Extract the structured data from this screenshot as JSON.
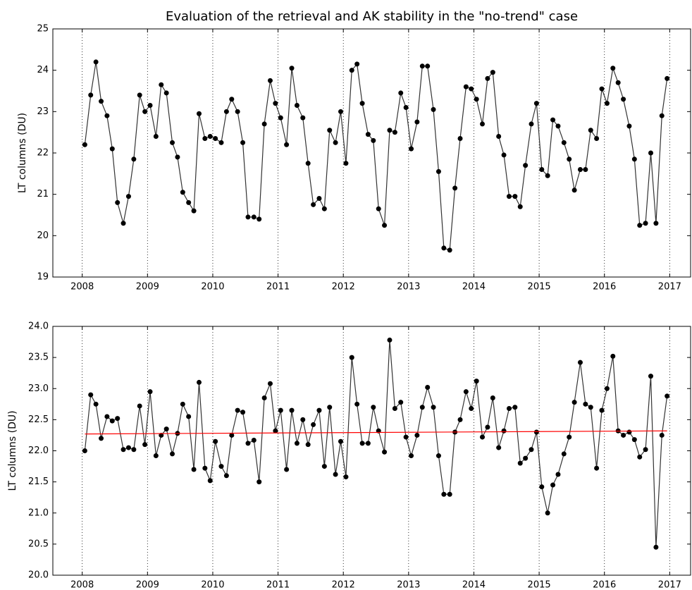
{
  "chart_data": [
    {
      "type": "line",
      "title": "Evaluation of the retrieval and AK stability in the \"no-trend\" case",
      "ylabel": "LT columns (DU)",
      "xlim": [
        2007.55,
        2017.32
      ],
      "xticks": [
        2008,
        2009,
        2010,
        2011,
        2012,
        2013,
        2014,
        2015,
        2016,
        2017
      ],
      "ylim": [
        19,
        25
      ],
      "yticks": [
        19,
        20,
        21,
        22,
        23,
        24,
        25
      ],
      "grid": "x",
      "series": [
        {
          "color": "#000000",
          "line_color": "#333333",
          "marker": true,
          "x": [
            2008.04,
            2008.13,
            2008.21,
            2008.29,
            2008.38,
            2008.46,
            2008.54,
            2008.63,
            2008.71,
            2008.79,
            2008.88,
            2008.96,
            2009.04,
            2009.13,
            2009.21,
            2009.29,
            2009.38,
            2009.46,
            2009.54,
            2009.63,
            2009.71,
            2009.79,
            2009.88,
            2009.96,
            2010.04,
            2010.13,
            2010.21,
            2010.29,
            2010.38,
            2010.46,
            2010.54,
            2010.63,
            2010.71,
            2010.79,
            2010.88,
            2010.96,
            2011.04,
            2011.13,
            2011.21,
            2011.29,
            2011.38,
            2011.46,
            2011.54,
            2011.63,
            2011.71,
            2011.79,
            2011.88,
            2011.96,
            2012.04,
            2012.13,
            2012.21,
            2012.29,
            2012.38,
            2012.46,
            2012.54,
            2012.63,
            2012.71,
            2012.79,
            2012.88,
            2012.96,
            2013.04,
            2013.13,
            2013.21,
            2013.29,
            2013.38,
            2013.46,
            2013.54,
            2013.63,
            2013.71,
            2013.79,
            2013.88,
            2013.96,
            2014.04,
            2014.13,
            2014.21,
            2014.29,
            2014.38,
            2014.46,
            2014.54,
            2014.63,
            2014.71,
            2014.79,
            2014.88,
            2014.96,
            2015.04,
            2015.13,
            2015.21,
            2015.29,
            2015.38,
            2015.46,
            2015.54,
            2015.63,
            2015.71,
            2015.79,
            2015.88,
            2015.96,
            2016.04,
            2016.13,
            2016.21,
            2016.29,
            2016.38,
            2016.46,
            2016.54,
            2016.63,
            2016.71,
            2016.79,
            2016.88,
            2016.96
          ],
          "values": [
            22.2,
            23.4,
            24.2,
            23.25,
            22.9,
            22.1,
            20.8,
            20.3,
            20.95,
            21.85,
            23.4,
            23.0,
            23.15,
            22.4,
            23.65,
            23.45,
            22.25,
            21.9,
            21.05,
            20.8,
            20.6,
            22.95,
            22.35,
            22.4,
            22.35,
            22.25,
            23.0,
            23.3,
            23.0,
            22.25,
            20.45,
            20.45,
            20.4,
            22.7,
            23.75,
            23.2,
            22.85,
            22.2,
            24.05,
            23.15,
            22.85,
            21.75,
            20.75,
            20.9,
            20.65,
            22.55,
            22.25,
            23.0,
            21.75,
            24.0,
            24.15,
            23.2,
            22.45,
            22.3,
            20.65,
            20.25,
            22.55,
            22.5,
            23.45,
            23.1,
            22.1,
            22.75,
            24.1,
            24.1,
            23.05,
            21.55,
            19.7,
            19.65,
            21.15,
            22.35,
            23.6,
            23.55,
            23.3,
            22.7,
            23.8,
            23.95,
            22.4,
            21.95,
            20.95,
            20.95,
            20.7,
            21.7,
            22.7,
            23.2,
            21.6,
            21.45,
            22.8,
            22.65,
            22.25,
            21.85,
            21.1,
            21.6,
            21.6,
            22.55,
            22.35,
            23.55,
            23.2,
            24.05,
            23.7,
            23.3,
            22.65,
            21.85,
            20.25,
            20.3,
            22.0,
            20.3,
            22.9,
            23.8
          ]
        }
      ]
    },
    {
      "type": "line",
      "ylabel": "LT columns (DU)",
      "xlim": [
        2007.55,
        2017.32
      ],
      "xticks": [
        2008,
        2009,
        2010,
        2011,
        2012,
        2013,
        2014,
        2015,
        2016,
        2017
      ],
      "ylim": [
        20,
        24
      ],
      "yticks": [
        {
          "value": 20,
          "label": "20.0"
        },
        20.5,
        {
          "value": 21,
          "label": "21.0"
        },
        21.5,
        {
          "value": 22,
          "label": "22.0"
        },
        22.5,
        {
          "value": 23,
          "label": "23.0"
        },
        23.5,
        {
          "value": 24,
          "label": "24.0"
        }
      ],
      "grid": "x",
      "series": [
        {
          "color": "#000000",
          "line_color": "#333333",
          "marker": true,
          "x": [
            2008.04,
            2008.13,
            2008.21,
            2008.29,
            2008.38,
            2008.46,
            2008.54,
            2008.63,
            2008.71,
            2008.79,
            2008.88,
            2008.96,
            2009.04,
            2009.13,
            2009.21,
            2009.29,
            2009.38,
            2009.46,
            2009.54,
            2009.63,
            2009.71,
            2009.79,
            2009.88,
            2009.96,
            2010.04,
            2010.13,
            2010.21,
            2010.29,
            2010.38,
            2010.46,
            2010.54,
            2010.63,
            2010.71,
            2010.79,
            2010.88,
            2010.96,
            2011.04,
            2011.13,
            2011.21,
            2011.29,
            2011.38,
            2011.46,
            2011.54,
            2011.63,
            2011.71,
            2011.79,
            2011.88,
            2011.96,
            2012.04,
            2012.13,
            2012.21,
            2012.29,
            2012.38,
            2012.46,
            2012.54,
            2012.63,
            2012.71,
            2012.79,
            2012.88,
            2012.96,
            2013.04,
            2013.13,
            2013.21,
            2013.29,
            2013.38,
            2013.46,
            2013.54,
            2013.63,
            2013.71,
            2013.79,
            2013.88,
            2013.96,
            2014.04,
            2014.13,
            2014.21,
            2014.29,
            2014.38,
            2014.46,
            2014.54,
            2014.63,
            2014.71,
            2014.79,
            2014.88,
            2014.96,
            2015.04,
            2015.13,
            2015.21,
            2015.29,
            2015.38,
            2015.46,
            2015.54,
            2015.63,
            2015.71,
            2015.79,
            2015.88,
            2015.96,
            2016.04,
            2016.13,
            2016.21,
            2016.29,
            2016.38,
            2016.46,
            2016.54,
            2016.63,
            2016.71,
            2016.79,
            2016.88,
            2016.96
          ],
          "values": [
            22.0,
            22.9,
            22.75,
            22.2,
            22.55,
            22.48,
            22.52,
            22.02,
            22.05,
            22.02,
            22.72,
            22.1,
            22.95,
            21.92,
            22.25,
            22.35,
            21.95,
            22.28,
            22.75,
            22.55,
            21.7,
            23.1,
            21.72,
            21.52,
            22.15,
            21.75,
            21.6,
            22.25,
            22.65,
            22.62,
            22.12,
            22.17,
            21.5,
            22.85,
            23.08,
            22.32,
            22.65,
            21.7,
            22.65,
            22.12,
            22.5,
            22.1,
            22.42,
            22.65,
            21.75,
            22.7,
            21.62,
            22.15,
            21.58,
            23.5,
            22.75,
            22.12,
            22.12,
            22.7,
            22.32,
            21.98,
            23.78,
            22.68,
            22.78,
            22.22,
            21.92,
            22.25,
            22.7,
            23.02,
            22.7,
            21.92,
            21.3,
            21.3,
            22.3,
            22.5,
            22.95,
            22.68,
            23.12,
            22.22,
            22.38,
            22.85,
            22.05,
            22.32,
            22.68,
            22.7,
            21.8,
            21.88,
            22.02,
            22.3,
            21.42,
            21.0,
            21.45,
            21.62,
            21.95,
            22.22,
            22.78,
            23.42,
            22.75,
            22.7,
            21.72,
            22.65,
            23.0,
            23.52,
            22.32,
            22.25,
            22.3,
            22.18,
            21.9,
            22.02,
            23.2,
            20.45,
            22.25,
            22.88
          ]
        },
        {
          "color": "#ff0000",
          "line_color": "#ff0000",
          "marker": false,
          "x": [
            2008.04,
            2016.96
          ],
          "values": [
            22.27,
            22.32
          ]
        }
      ]
    }
  ]
}
